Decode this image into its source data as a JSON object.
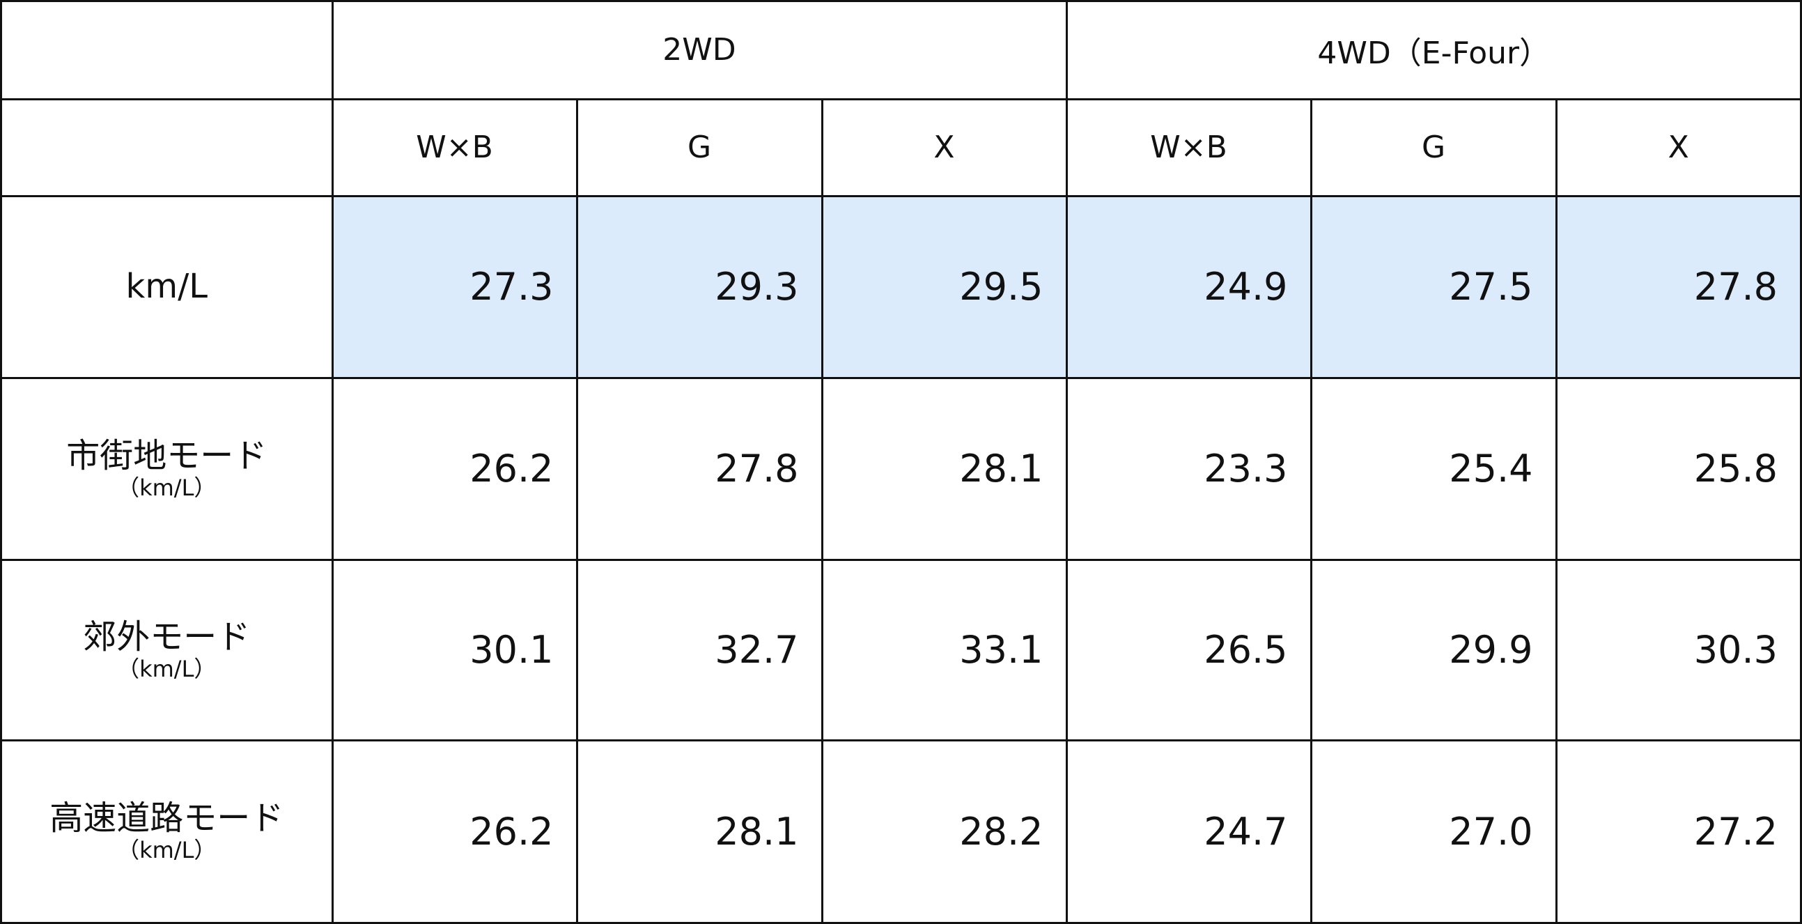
{
  "table": {
    "group_headers": [
      "2WD",
      "4WD（E-Four）"
    ],
    "sub_headers": [
      "W×B",
      "G",
      "X",
      "W×B",
      "G",
      "X"
    ],
    "rows": [
      {
        "label": "km/L",
        "values": [
          "27.3",
          "29.3",
          "29.5",
          "24.9",
          "27.5",
          "27.8"
        ]
      },
      {
        "label": "市街地モード",
        "unit": "（km/L）",
        "values": [
          "26.2",
          "27.8",
          "28.1",
          "23.3",
          "25.4",
          "25.8"
        ]
      },
      {
        "label": "郊外モード",
        "unit": "（km/L）",
        "values": [
          "30.1",
          "32.7",
          "33.1",
          "26.5",
          "29.9",
          "30.3"
        ]
      },
      {
        "label": "高速道路モード",
        "unit": "（km/L）",
        "values": [
          "26.2",
          "28.1",
          "28.2",
          "24.7",
          "27.0",
          "27.2"
        ]
      }
    ]
  }
}
